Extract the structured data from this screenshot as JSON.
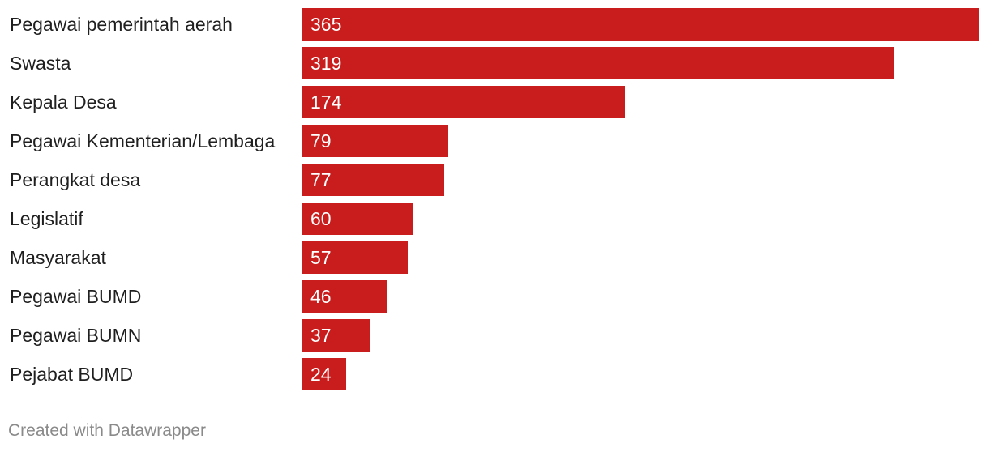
{
  "chart_data": {
    "type": "bar",
    "orientation": "horizontal",
    "categories": [
      "Pegawai pemerintah aerah",
      "Swasta",
      "Kepala Desa",
      "Pegawai Kementerian/Lembaga",
      "Perangkat desa",
      "Legislatif",
      "Masyarakat",
      "Pegawai BUMD",
      "Pegawai BUMN",
      "Pejabat BUMD"
    ],
    "values": [
      365,
      319,
      174,
      79,
      77,
      60,
      57,
      46,
      37,
      24
    ],
    "xlim": [
      0,
      365
    ],
    "grid": false,
    "bar_color": "#c91d1d"
  },
  "footer": {
    "credit": "Created with Datawrapper"
  },
  "colors": {
    "bar": "#c91d1d",
    "label_text": "#1f1f1f",
    "value_text": "#ffffff",
    "footer_text": "#8a8a8a"
  }
}
